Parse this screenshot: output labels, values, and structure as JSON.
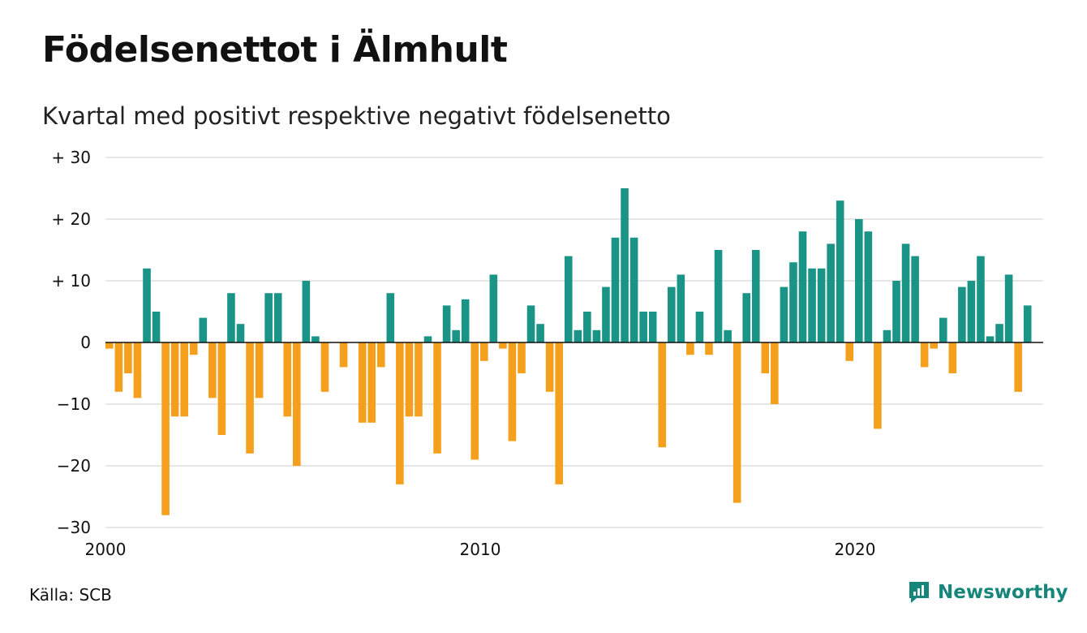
{
  "title": "Födelsenettot i Älmhult",
  "subtitle": "Kvartal med positivt respektive negativt födelsenetto",
  "source": "Källa: SCB",
  "brand": "Newsworthy",
  "colors": {
    "positive": "#1a9486",
    "negative": "#f5a01c",
    "grid": "#dddddd",
    "axis": "#111111",
    "brand": "#16857a"
  },
  "chart_data": {
    "type": "bar",
    "x_start_year": 2000,
    "periods_per_year": 4,
    "ylim": [
      -30,
      30
    ],
    "yticks": [
      {
        "value": 30,
        "label": "+ 30"
      },
      {
        "value": 20,
        "label": "+ 20"
      },
      {
        "value": 10,
        "label": "+ 10"
      },
      {
        "value": 0,
        "label": "0"
      },
      {
        "value": -10,
        "label": "−10"
      },
      {
        "value": -20,
        "label": "−20"
      },
      {
        "value": -30,
        "label": "−30"
      }
    ],
    "xticks": [
      {
        "year": 2000,
        "label": "2000"
      },
      {
        "year": 2010,
        "label": "2010"
      },
      {
        "year": 2020,
        "label": "2020"
      }
    ],
    "grid": true,
    "values": [
      -1,
      -8,
      -5,
      -9,
      12,
      5,
      -28,
      -12,
      -12,
      -2,
      4,
      -9,
      -15,
      8,
      3,
      -18,
      -9,
      8,
      8,
      -12,
      -20,
      10,
      1,
      -8,
      0,
      -4,
      0,
      -13,
      -13,
      -4,
      8,
      -23,
      -12,
      -12,
      1,
      -18,
      6,
      2,
      7,
      -19,
      -3,
      11,
      -1,
      -16,
      -5,
      6,
      3,
      -8,
      -23,
      14,
      2,
      5,
      2,
      9,
      17,
      25,
      17,
      5,
      5,
      -17,
      9,
      11,
      -2,
      5,
      -2,
      15,
      2,
      -26,
      8,
      15,
      -5,
      -10,
      9,
      13,
      18,
      12,
      12,
      16,
      23,
      -3,
      20,
      18,
      -14,
      2,
      10,
      16,
      14,
      -4,
      -1,
      4,
      -5,
      9,
      10,
      14,
      1,
      3,
      11,
      -8,
      6
    ]
  }
}
